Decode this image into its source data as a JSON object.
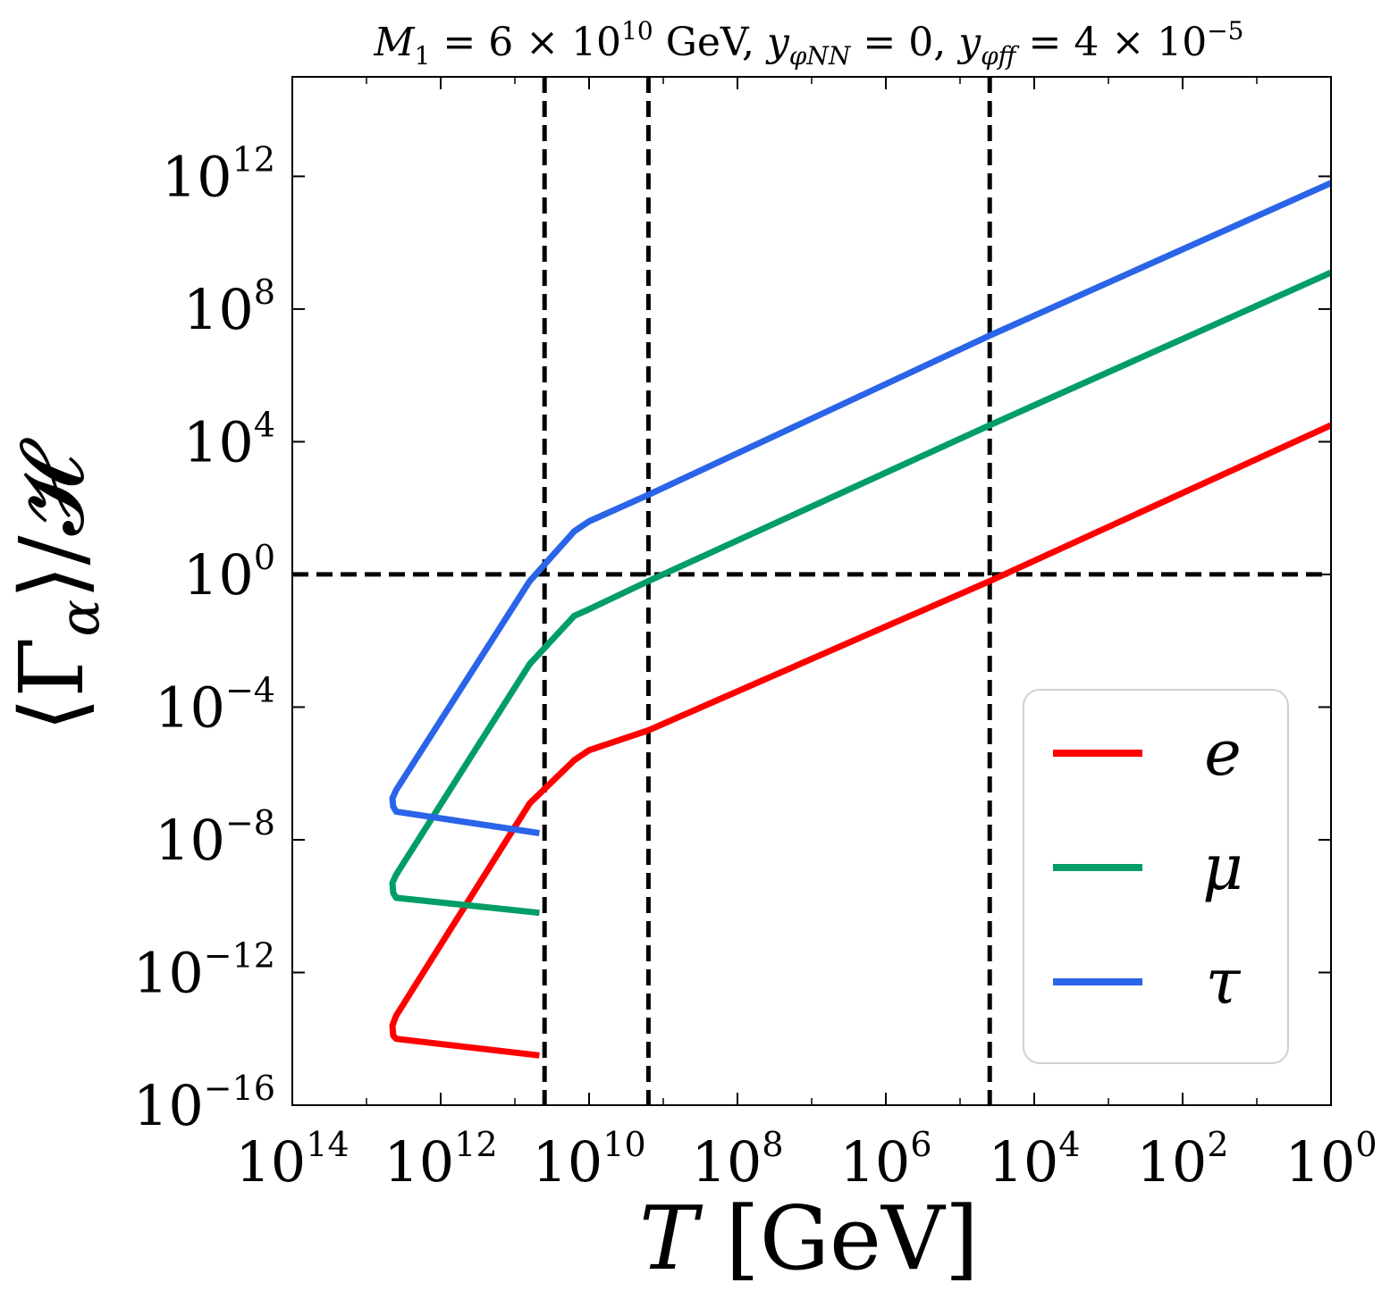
{
  "chart_data": {
    "type": "line",
    "title": "M1 = 6 × 10^10 GeV, yφNN = 0, yφff = 4 × 10^-5",
    "title_parts": {
      "m_symbol": "M",
      "m_sub": "1",
      "m_rest": " = 6 × 10",
      "m_exp": "10",
      "m_unit": " GeV, ",
      "y1_symbol": "y",
      "y1_sub": "φNN",
      "y1_rest": " = 0, ",
      "y2_symbol": "y",
      "y2_sub": "φff",
      "y2_rest": " = 4 × 10",
      "y2_exp": "−5"
    },
    "xlabel": "T [GeV]",
    "xlabel_parts": {
      "symbol": "T",
      "unit": " [GeV]"
    },
    "ylabel": "⟨Γα⟩/𝓗",
    "ylabel_parts": {
      "open": "⟨Γ",
      "sub": "α",
      "close": "⟩/𝓗"
    },
    "x_scale": "log",
    "y_scale": "log",
    "x_reversed": true,
    "xlim_log10": [
      14,
      0
    ],
    "ylim_log10": [
      -16,
      15
    ],
    "x_ticks": [
      {
        "base": "10",
        "exp": "14",
        "log10": 14
      },
      {
        "base": "10",
        "exp": "12",
        "log10": 12
      },
      {
        "base": "10",
        "exp": "10",
        "log10": 10
      },
      {
        "base": "10",
        "exp": "8",
        "log10": 8
      },
      {
        "base": "10",
        "exp": "6",
        "log10": 6
      },
      {
        "base": "10",
        "exp": "4",
        "log10": 4
      },
      {
        "base": "10",
        "exp": "2",
        "log10": 2
      },
      {
        "base": "10",
        "exp": "0",
        "log10": 0
      }
    ],
    "y_ticks": [
      {
        "base": "10",
        "exp": "−16",
        "log10": -16
      },
      {
        "base": "10",
        "exp": "−12",
        "log10": -12
      },
      {
        "base": "10",
        "exp": "−8",
        "log10": -8
      },
      {
        "base": "10",
        "exp": "−4",
        "log10": -4
      },
      {
        "base": "10",
        "exp": "0",
        "log10": 0
      },
      {
        "base": "10",
        "exp": "4",
        "log10": 4
      },
      {
        "base": "10",
        "exp": "8",
        "log10": 8
      },
      {
        "base": "10",
        "exp": "12",
        "log10": 12
      }
    ],
    "reference_lines": {
      "horizontal_log10": [
        0
      ],
      "vertical_log10": [
        10.6,
        9.2,
        4.6
      ]
    },
    "series": [
      {
        "name": "e",
        "color": "#ff0000",
        "points_log10": [
          [
            10.67,
            -14.5
          ],
          [
            12.6,
            -14.0
          ],
          [
            12.64,
            -13.9
          ],
          [
            12.65,
            -13.6
          ],
          [
            12.6,
            -13.3
          ],
          [
            10.8,
            -6.9
          ],
          [
            10.2,
            -5.6
          ],
          [
            10.0,
            -5.3
          ],
          [
            9.2,
            -4.7
          ],
          [
            4.6,
            -0.2
          ],
          [
            0.0,
            4.5
          ]
        ]
      },
      {
        "name": "μ",
        "color": "#009e66",
        "points_log10": [
          [
            10.67,
            -10.2
          ],
          [
            12.6,
            -9.75
          ],
          [
            12.64,
            -9.6
          ],
          [
            12.65,
            -9.3
          ],
          [
            12.6,
            -9.05
          ],
          [
            10.8,
            -2.7
          ],
          [
            10.2,
            -1.25
          ],
          [
            10.0,
            -1.05
          ],
          [
            9.2,
            -0.2
          ],
          [
            4.6,
            4.5
          ],
          [
            0.0,
            9.1
          ]
        ]
      },
      {
        "name": "τ",
        "color": "#2a64e8",
        "points_log10": [
          [
            10.67,
            -7.8
          ],
          [
            12.6,
            -7.15
          ],
          [
            12.64,
            -7.0
          ],
          [
            12.65,
            -6.75
          ],
          [
            12.6,
            -6.5
          ],
          [
            10.8,
            -0.2
          ],
          [
            10.2,
            1.3
          ],
          [
            10.0,
            1.6
          ],
          [
            9.2,
            2.4
          ],
          [
            4.6,
            7.2
          ],
          [
            0.0,
            11.8
          ]
        ]
      }
    ],
    "legend": {
      "position": "lower-right",
      "entries": [
        "e",
        "μ",
        "τ"
      ]
    }
  }
}
